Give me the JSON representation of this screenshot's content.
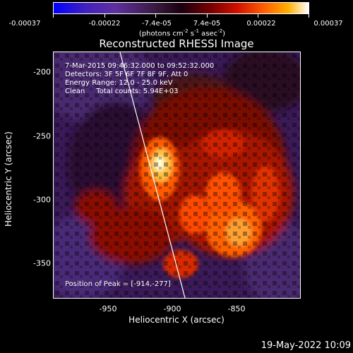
{
  "colorbar": {
    "ticks": [
      "-0.00037",
      "-0.00022",
      "-7.4e-05",
      "7.4e-05",
      "0.00022",
      "0.00037"
    ],
    "units_prefix": "(photons cm",
    "units_sup1": "-2",
    "units_mid1": " s",
    "units_sup2": "-1",
    "units_mid2": " asec",
    "units_sup3": "-2",
    "units_suffix": ")"
  },
  "title": "Reconstructed RHESSI Image",
  "info": {
    "time_range": "7-Mar-2015 09:46:32.000 to 09:52:32.000",
    "detectors": "Detectors: 3F 5F 6F 7F 8F 9F, Att 0",
    "energy": "Energy Range: 12.0 - 25.0 keV",
    "method": "Clean     Total counts: 5.94E+03"
  },
  "peak_label": "Position of Peak = [-914,-277]",
  "axes": {
    "xlabel": "Heliocentric X (arcsec)",
    "ylabel": "Heliocentric Y (arcsec)",
    "xticks": [
      "-950",
      "-900",
      "-850"
    ],
    "yticks": [
      "-200",
      "-250",
      "-300",
      "-350"
    ]
  },
  "footer": "19-May-2022 10:09"
}
